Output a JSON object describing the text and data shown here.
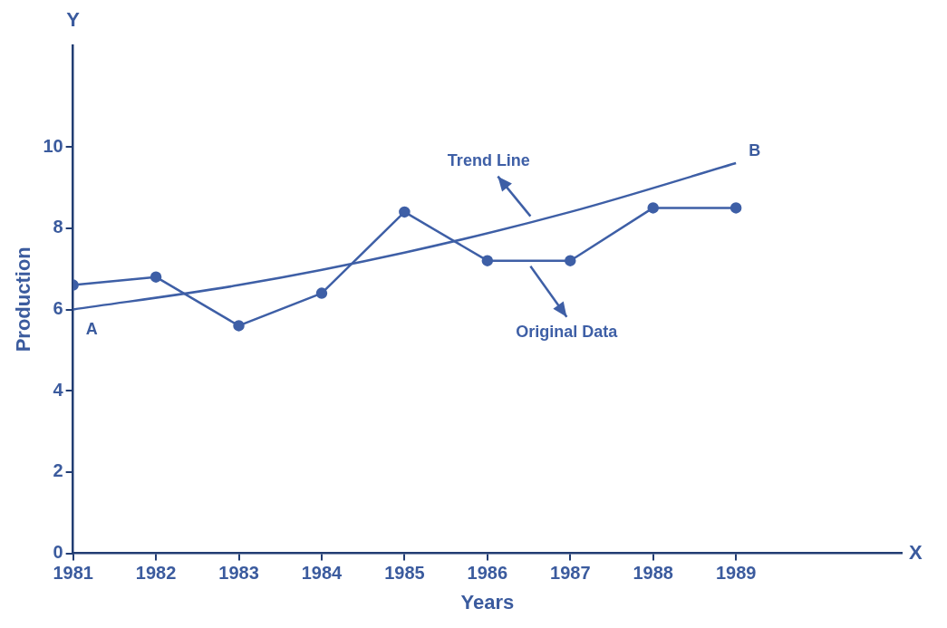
{
  "chart_data": {
    "type": "line",
    "xlabel": "Years",
    "ylabel": "Production",
    "xlim": [
      1981,
      1991
    ],
    "xticks": [
      1981,
      1982,
      1983,
      1984,
      1985,
      1986,
      1987,
      1988,
      1989
    ],
    "ylim": [
      0,
      12.5
    ],
    "yticks": [
      0,
      2,
      4,
      6,
      8,
      10
    ],
    "grid": false,
    "legend": false,
    "series": [
      {
        "color": "#3e5fa6",
        "marker": "circle",
        "x": [
          1981,
          1982,
          1983,
          1984,
          1985,
          1986,
          1987,
          1988,
          1989
        ],
        "values": [
          6.6,
          6.8,
          5.6,
          6.4,
          8.4,
          7.2,
          7.2,
          8.5,
          8.5
        ]
      },
      {
        "color": "#3e5fa6",
        "marker": "none",
        "x": [
          1981,
          1983,
          1985,
          1987,
          1989
        ],
        "values": [
          6.0,
          6.6,
          7.4,
          8.4,
          9.6
        ]
      }
    ],
    "annotations": [
      {
        "text": "A",
        "x": 1981,
        "y": 6.0
      },
      {
        "text": "B",
        "x": 1989,
        "y": 9.6
      },
      "Y",
      "X",
      "Original Data",
      "Trend Line"
    ]
  }
}
